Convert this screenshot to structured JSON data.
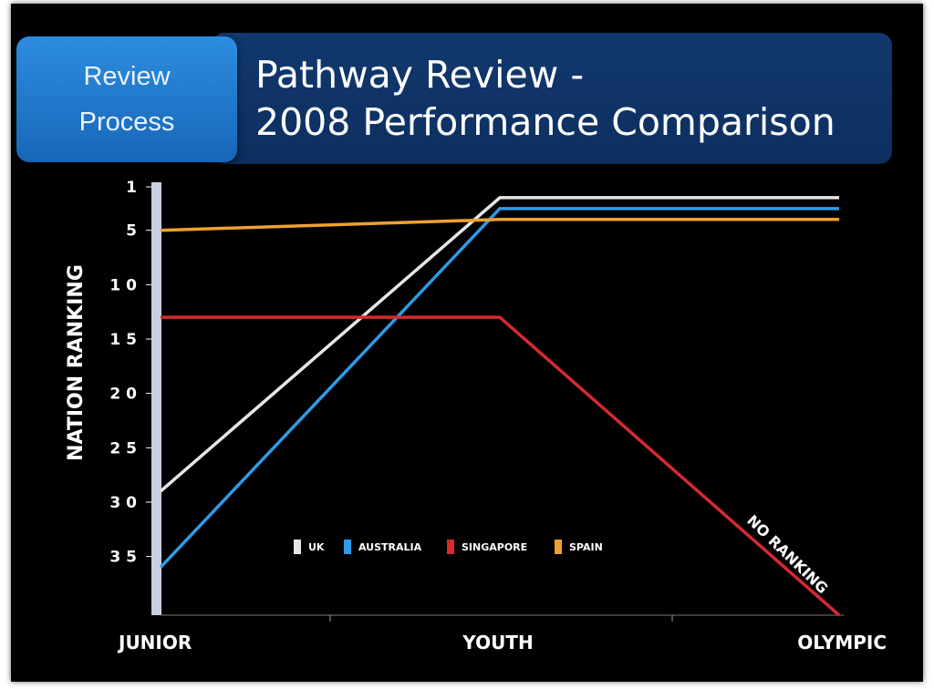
{
  "header": {
    "badge_line1": "Review",
    "badge_line2": "Process",
    "title_line1": "Pathway Review -",
    "title_line2": "2008 Performance Comparison"
  },
  "colors": {
    "background": "#000000",
    "header_bar": "#0d2f5f",
    "badge": "#1f78cc",
    "uk": "#e6e6e6",
    "australia": "#2f9be6",
    "singapore": "#d62a2f",
    "spain": "#f0a030",
    "axis": "#c8d0e0"
  },
  "chart_data": {
    "type": "line",
    "title": "Pathway Review - 2008 Performance Comparison",
    "xlabel": "",
    "ylabel": "NATION RANKING",
    "categories": [
      "JUNIOR",
      "YOUTH",
      "OLYMPIC"
    ],
    "y_ticks": [
      "1",
      "5",
      "10",
      "15",
      "20",
      "25",
      "30",
      "35"
    ],
    "y_tick_values": [
      1,
      5,
      10,
      15,
      20,
      25,
      30,
      35
    ],
    "ylim": [
      1,
      40
    ],
    "y_inverted": true,
    "grid": false,
    "legend_position": "bottom-center",
    "series": [
      {
        "name": "UK",
        "color": "#e6e6e6",
        "values": [
          29,
          2,
          2
        ]
      },
      {
        "name": "AUSTRALIA",
        "color": "#2f9be6",
        "values": [
          36,
          3,
          3
        ]
      },
      {
        "name": "SINGAPORE",
        "color": "#d62a2f",
        "values": [
          13,
          13,
          null
        ]
      },
      {
        "name": "SPAIN",
        "color": "#f0a030",
        "values": [
          5,
          4,
          4
        ]
      }
    ],
    "annotations": [
      {
        "text": "NO RANKING",
        "series": "SINGAPORE",
        "category": "OLYMPIC"
      }
    ]
  }
}
